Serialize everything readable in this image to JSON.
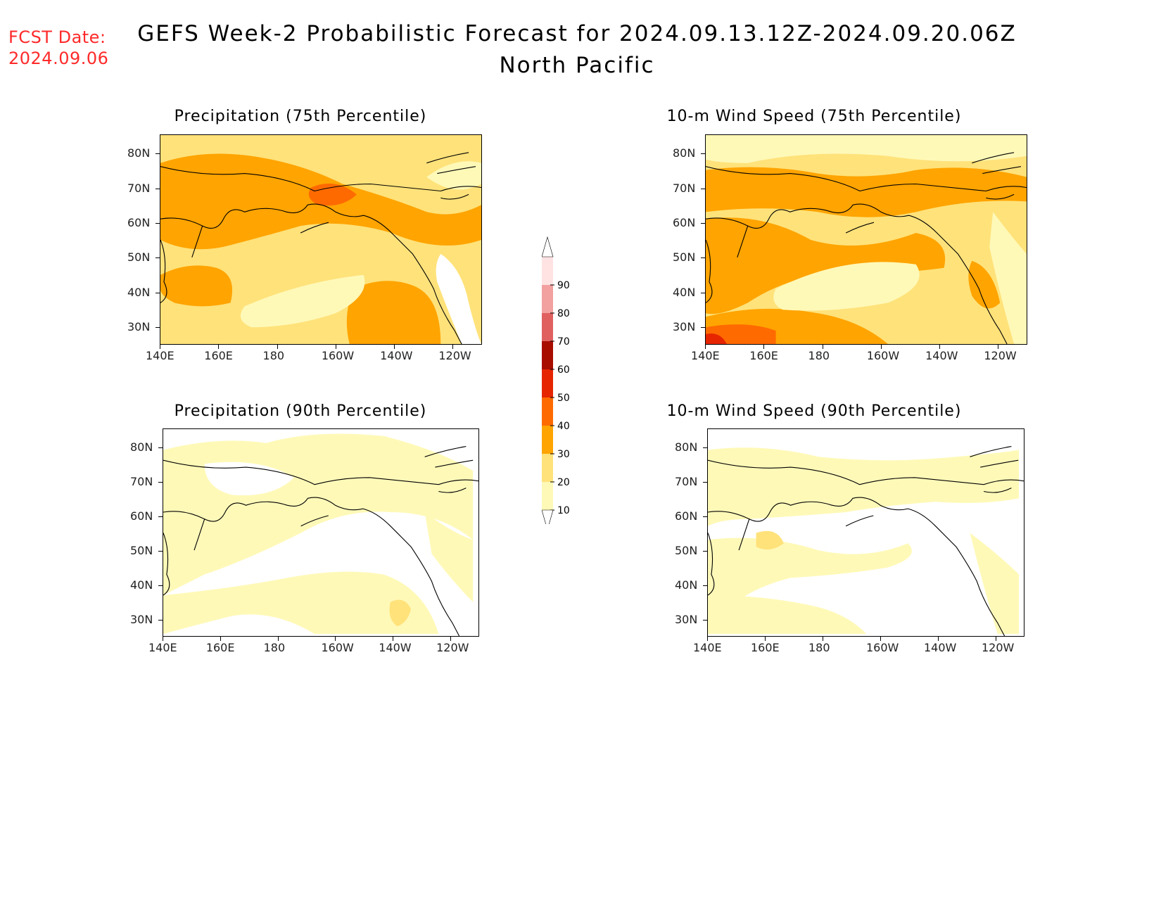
{
  "header": {
    "fcst_label": "FCST Date:",
    "fcst_date": "2024.09.06",
    "title": "GEFS Week-2 Probabilistic Forecast for 2024.09.13.12Z-2024.09.20.06Z",
    "subtitle": "North Pacific"
  },
  "panels": [
    {
      "id": "precip75",
      "title": "Precipitation (75th Percentile)",
      "level": "high-precip"
    },
    {
      "id": "wind75",
      "title": "10-m Wind Speed (75th Percentile)",
      "level": "high-wind"
    },
    {
      "id": "precip90",
      "title": "Precipitation (90th Percentile)",
      "level": "low-precip"
    },
    {
      "id": "wind90",
      "title": "10-m Wind Speed (90th Percentile)",
      "level": "low-wind"
    }
  ],
  "axes": {
    "lat_ticks": [
      "80N",
      "70N",
      "60N",
      "50N",
      "40N",
      "30N"
    ],
    "lon_ticks": [
      "140E",
      "160E",
      "180",
      "160W",
      "140W",
      "120W"
    ]
  },
  "colorbar": {
    "levels": [
      "10",
      "20",
      "30",
      "40",
      "50",
      "60",
      "70",
      "80",
      "90"
    ],
    "colors": [
      "#fff9b8",
      "#ffe27a",
      "#ffa400",
      "#ff6a00",
      "#e62500",
      "#a80c00",
      "#e06060",
      "#f2a0a0",
      "#ffe3e3"
    ]
  }
}
